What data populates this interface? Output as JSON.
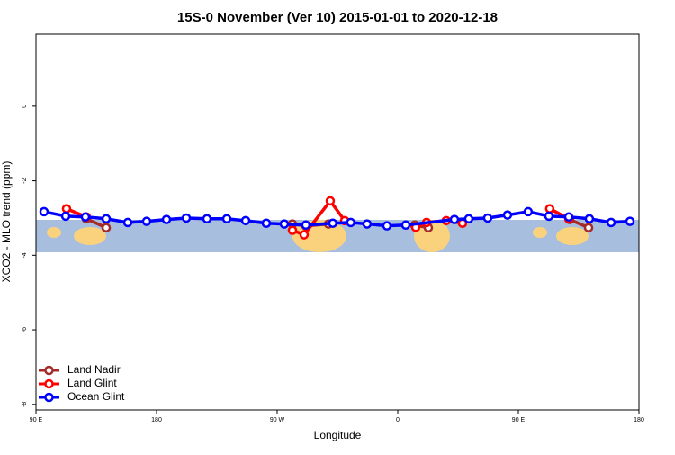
{
  "chart_data": {
    "type": "line",
    "title": "15S-0 November (Ver 10)   2015-01-01 to 2020-12-18",
    "x_label": "Longitude",
    "y_label": "XCO2 - MLO trend (ppm)",
    "xlim": [
      90,
      540
    ],
    "ylim": [
      -8.15,
      1.93
    ],
    "xticks": [
      {
        "value": 90,
        "label": "90 E"
      },
      {
        "value": 180,
        "label": "180"
      },
      {
        "value": 270,
        "label": "90 W"
      },
      {
        "value": 360,
        "label": "0"
      },
      {
        "value": 450,
        "label": "90 E"
      },
      {
        "value": 540,
        "label": "180"
      }
    ],
    "yticks": [
      0,
      -2,
      -4,
      -6,
      -8
    ],
    "legend": "bottom-left",
    "series": [
      {
        "name": "Land Nadir",
        "color": "#a52a2a",
        "x": [
          127.6,
          142.4,
          null,
          281.4,
          291.4,
          308.3,
          null,
          372.7,
          382.8,
          null,
          488.3,
          502.4
        ],
        "values": [
          -3.02,
          -3.26,
          null,
          -3.16,
          -3.21,
          -3.16,
          null,
          -3.19,
          -3.26,
          null,
          -3.04,
          -3.26
        ]
      },
      {
        "name": "Land Glint",
        "color": "#ff0000",
        "x": [
          112.8,
          127.6,
          null,
          281.4,
          290.1,
          309.6,
          320.4,
          null,
          373.4,
          381.5,
          396.2,
          408.3,
          null,
          473.4,
          487.6
        ],
        "values": [
          -2.75,
          -2.97,
          null,
          -3.33,
          -3.45,
          -2.54,
          -3.07,
          null,
          -3.25,
          -3.12,
          -3.07,
          -3.14,
          null,
          -2.75,
          -3.02
        ]
      },
      {
        "name": "Ocean Glint",
        "color": "#0000ff",
        "x": [
          96.0,
          112.2,
          126.9,
          142.4,
          158.5,
          172.6,
          187.4,
          202.2,
          217.6,
          232.4,
          246.5,
          261.9,
          275.3,
          291.4,
          311.5,
          324.9,
          337.1,
          351.9,
          366.0,
          402.3,
          413.0,
          427.1,
          441.9,
          457.3,
          472.8,
          487.6,
          503.0,
          519.2,
          533.3
        ],
        "values": [
          -2.83,
          -2.95,
          -2.97,
          -3.02,
          -3.12,
          -3.09,
          -3.04,
          -3.0,
          -3.02,
          -3.02,
          -3.07,
          -3.14,
          -3.16,
          -3.19,
          -3.14,
          -3.12,
          -3.16,
          -3.21,
          -3.19,
          -3.04,
          -3.02,
          -3.0,
          -2.92,
          -2.83,
          -2.95,
          -2.97,
          -3.02,
          -3.12,
          -3.09
        ]
      }
    ]
  }
}
